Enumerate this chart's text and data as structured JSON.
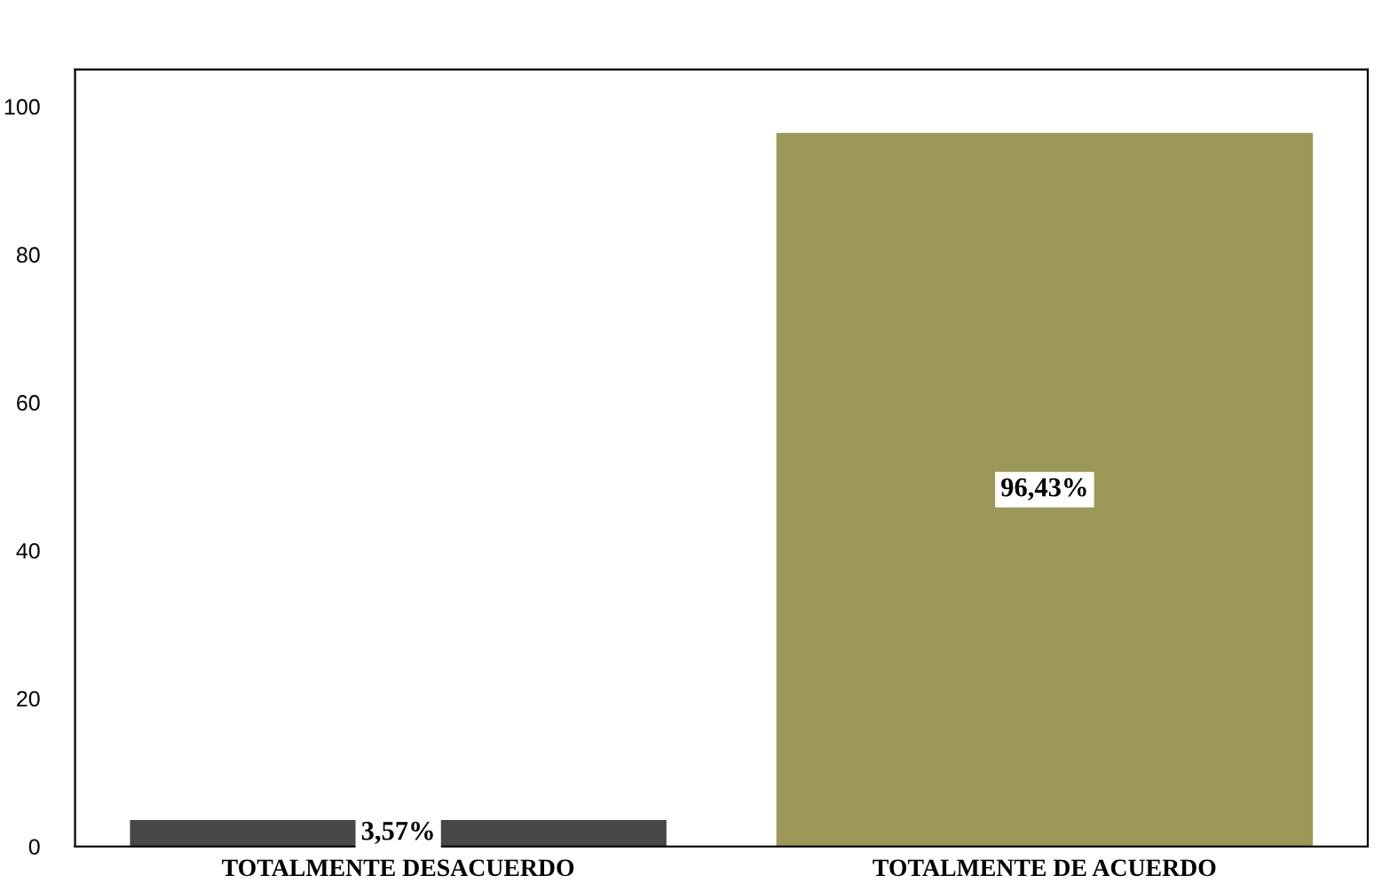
{
  "chart_data": {
    "type": "bar",
    "categories": [
      "TOTALMENTE DESACUERDO",
      "TOTALMENTE DE ACUERDO"
    ],
    "values": [
      3.57,
      96.43
    ],
    "colors": [
      "#474747",
      "#9c9858"
    ],
    "value_labels": [
      "3,57%",
      "96,43%"
    ],
    "ylim": [
      0,
      105
    ],
    "yticks": [
      0,
      20,
      40,
      60,
      80,
      100
    ],
    "grid": false,
    "legend": false
  }
}
